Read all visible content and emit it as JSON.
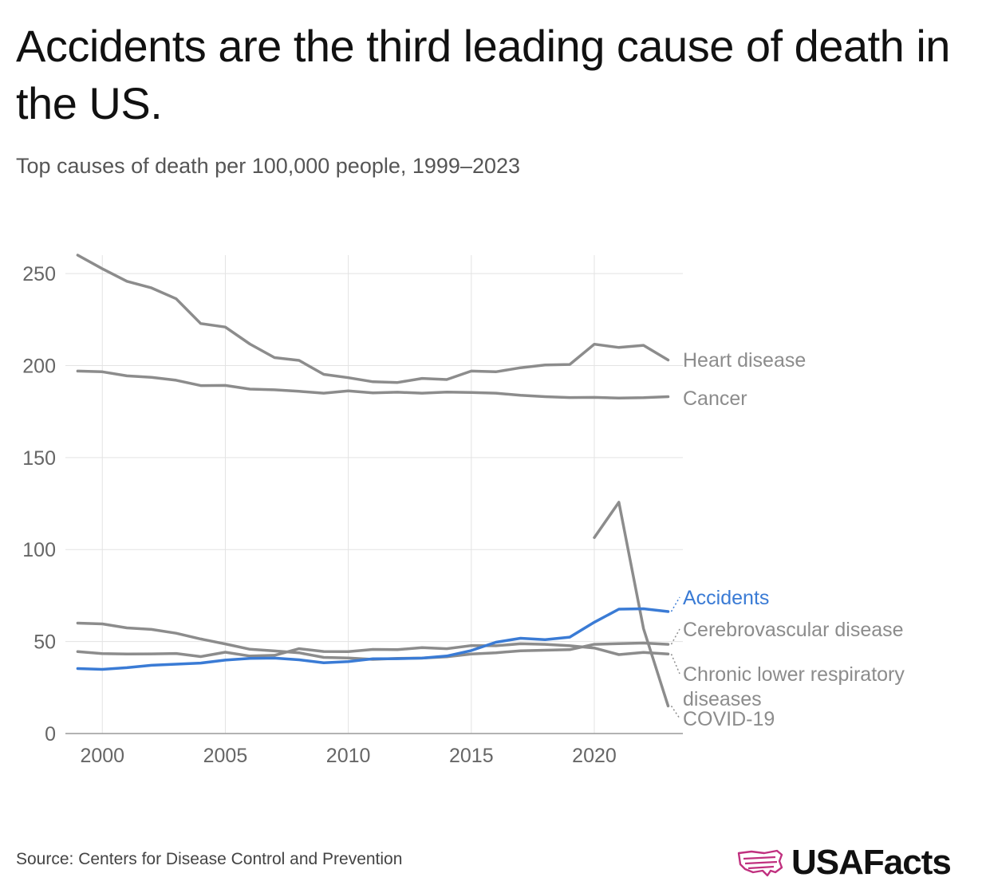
{
  "title": "Accidents are the third leading cause of death in the US.",
  "subtitle": "Top causes of death per 100,000 people, 1999–2023",
  "source": "Source: Centers for Disease Control and Prevention",
  "brand": {
    "name": "USAFacts",
    "icon": "us-map-flag-icon",
    "icon_color": "#c0307f"
  },
  "colors": {
    "highlight": "#3a7bd5",
    "muted": "#8c8c8c",
    "grid": "#e3e3e3",
    "axis_text": "#666666"
  },
  "chart_data": {
    "type": "line",
    "title": "Top causes of death per 100,000 people, 1999–2023",
    "xlabel": "",
    "ylabel": "",
    "xlim": [
      1998.5,
      2023.6
    ],
    "ylim": [
      0,
      260
    ],
    "x_ticks": [
      2000,
      2005,
      2010,
      2015,
      2020
    ],
    "y_ticks": [
      0,
      50,
      100,
      150,
      200,
      250
    ],
    "grid": true,
    "legend": "direct labels at right end of each line",
    "series": [
      {
        "name": "Heart disease",
        "highlight": false,
        "x": [
          1999,
          2000,
          2001,
          2002,
          2003,
          2004,
          2005,
          2006,
          2007,
          2008,
          2009,
          2010,
          2011,
          2012,
          2013,
          2014,
          2015,
          2016,
          2017,
          2018,
          2019,
          2020,
          2021,
          2022,
          2023
        ],
        "values": [
          260,
          252.6,
          245.8,
          242.2,
          236.3,
          222.8,
          220.9,
          211.7,
          204.3,
          202.8,
          195.2,
          193.4,
          191.2,
          190.8,
          193.0,
          192.4,
          197.0,
          196.6,
          198.8,
          200.3,
          200.6,
          211.6,
          209.8,
          211.0,
          203.0
        ]
      },
      {
        "name": "Cancer",
        "highlight": false,
        "x": [
          1999,
          2000,
          2001,
          2002,
          2003,
          2004,
          2005,
          2006,
          2007,
          2008,
          2009,
          2010,
          2011,
          2012,
          2013,
          2014,
          2015,
          2016,
          2017,
          2018,
          2019,
          2020,
          2021,
          2022,
          2023
        ],
        "values": [
          197.0,
          196.6,
          194.4,
          193.6,
          192.0,
          189.1,
          189.2,
          187.2,
          186.8,
          186.0,
          185.0,
          186.2,
          185.1,
          185.5,
          185.0,
          185.6,
          185.4,
          185.0,
          183.8,
          183.1,
          182.6,
          182.7,
          182.3,
          182.5,
          183.1
        ]
      },
      {
        "name": "COVID-19",
        "highlight": false,
        "x": [
          2020,
          2021,
          2022,
          2023
        ],
        "values": [
          106.5,
          125.7,
          57.0,
          15.0
        ]
      },
      {
        "name": "Accidents",
        "highlight": true,
        "x": [
          1999,
          2000,
          2001,
          2002,
          2003,
          2004,
          2005,
          2006,
          2007,
          2008,
          2009,
          2010,
          2011,
          2012,
          2013,
          2014,
          2015,
          2016,
          2017,
          2018,
          2019,
          2020,
          2021,
          2022,
          2023
        ],
        "values": [
          35.3,
          34.9,
          35.8,
          37.1,
          37.7,
          38.3,
          39.9,
          40.8,
          41.0,
          40.1,
          38.5,
          39.1,
          40.6,
          40.7,
          41.0,
          42.1,
          45.1,
          49.6,
          51.8,
          51.0,
          52.4,
          60.5,
          67.6,
          67.8,
          66.3
        ]
      },
      {
        "name": "Cerebrovascular disease",
        "highlight": false,
        "x": [
          1999,
          2000,
          2001,
          2002,
          2003,
          2004,
          2005,
          2006,
          2007,
          2008,
          2009,
          2010,
          2011,
          2012,
          2013,
          2014,
          2015,
          2016,
          2017,
          2018,
          2019,
          2020,
          2021,
          2022,
          2023
        ],
        "values": [
          60.0,
          59.6,
          57.4,
          56.6,
          54.5,
          51.4,
          48.7,
          45.8,
          44.9,
          43.9,
          41.4,
          41.1,
          40.3,
          40.8,
          41.0,
          41.7,
          43.2,
          43.9,
          45.0,
          45.3,
          45.6,
          48.5,
          48.9,
          49.2,
          48.5
        ]
      },
      {
        "name": "Chronic lower respiratory diseases",
        "highlight": false,
        "x": [
          1999,
          2000,
          2001,
          2002,
          2003,
          2004,
          2005,
          2006,
          2007,
          2008,
          2009,
          2010,
          2011,
          2012,
          2013,
          2014,
          2015,
          2016,
          2017,
          2018,
          2019,
          2020,
          2021,
          2022,
          2023
        ],
        "values": [
          44.5,
          43.4,
          43.2,
          43.3,
          43.5,
          41.8,
          44.2,
          42.1,
          42.5,
          46.1,
          44.6,
          44.5,
          45.7,
          45.6,
          46.7,
          46.1,
          47.8,
          47.7,
          48.8,
          48.5,
          47.7,
          46.5,
          42.9,
          44.1,
          43.2
        ]
      }
    ]
  }
}
